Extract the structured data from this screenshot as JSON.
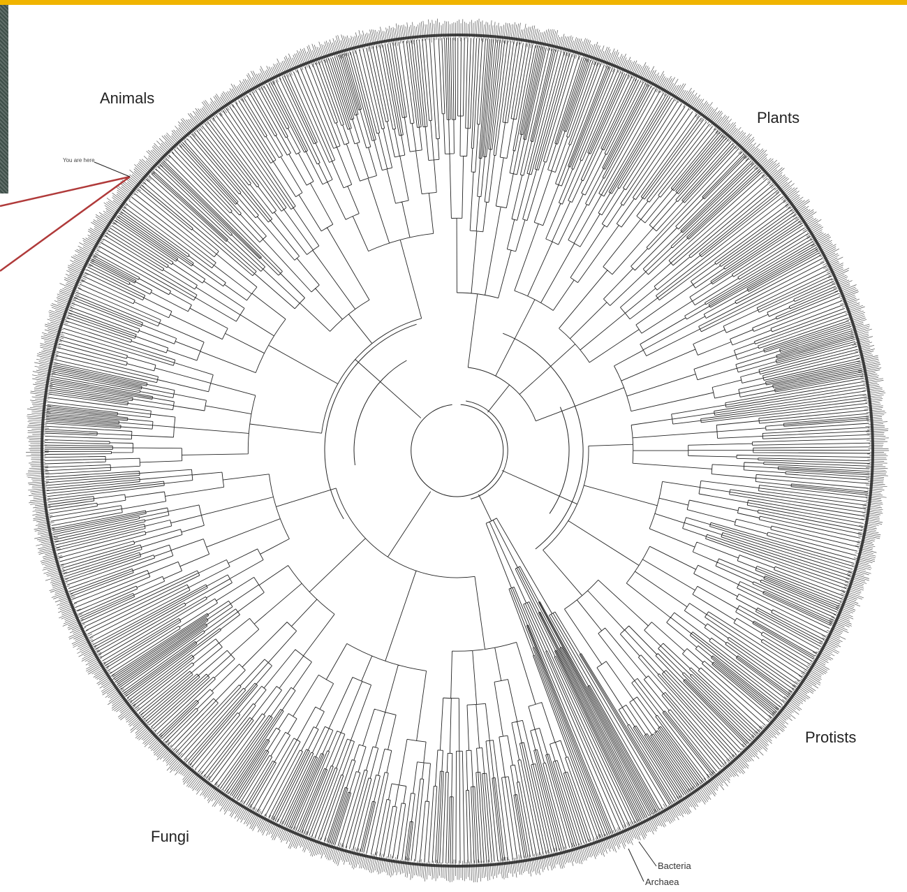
{
  "colors": {
    "top_bar": "#f0b400",
    "side_panel": "#3d4e48",
    "pointer": "#b03a3a",
    "branch": "#222222",
    "tips": "#555555"
  },
  "annotation": {
    "you_are_here": "You are here"
  },
  "groups": {
    "animals": "Animals",
    "plants": "Plants",
    "protists": "Protists",
    "fungi": "Fungi",
    "bacteria": "Bacteria",
    "archaea": "Archaea"
  }
}
